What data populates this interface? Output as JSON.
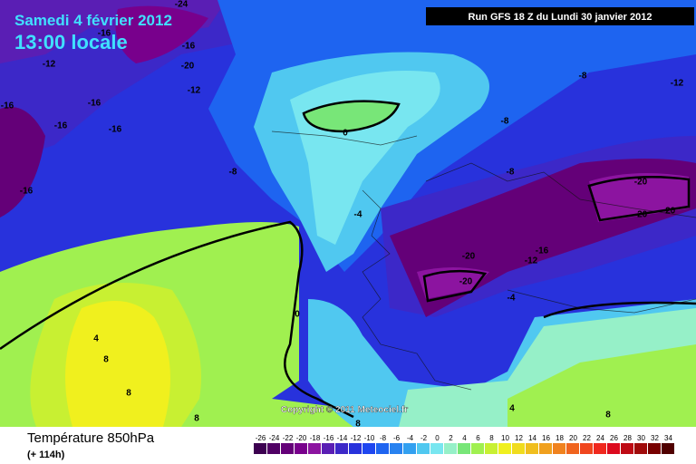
{
  "header": {
    "date": "Samedi 4 février 2012",
    "time": "13:00 locale",
    "run": "Run GFS 18 Z du Lundi 30 janvier 2012"
  },
  "copyright": "Copyright © 2011 Meteociel.fr",
  "footer": {
    "title": "Température 850hPa",
    "lead": "(+ 114h)"
  },
  "contour_labels": [
    -24,
    -16,
    -16,
    -20,
    -12,
    -12,
    -16,
    -16,
    -16,
    -16,
    -8,
    -16,
    0,
    -8,
    -12,
    -8,
    -8,
    -4,
    -20,
    -20,
    -20,
    -16,
    -20,
    -12,
    -20,
    -4,
    0,
    4,
    8,
    8,
    8,
    8,
    4,
    8
  ],
  "legend": {
    "values": [
      -26,
      -24,
      -22,
      -20,
      -18,
      -16,
      -14,
      -12,
      -10,
      -8,
      -6,
      -4,
      -2,
      0,
      2,
      4,
      6,
      8,
      10,
      12,
      14,
      16,
      18,
      20,
      22,
      24,
      26,
      28,
      30,
      32,
      34
    ],
    "colors": [
      "#3c0050",
      "#500064",
      "#640078",
      "#78008c",
      "#8c14a0",
      "#5a1eb4",
      "#3c28c8",
      "#2832dc",
      "#1e46f0",
      "#1e64f0",
      "#2882f0",
      "#32a0f0",
      "#50c8f0",
      "#78e6f0",
      "#96f0c8",
      "#78e678",
      "#a0f050",
      "#c8f032",
      "#f0f01e",
      "#f0dc1e",
      "#f0be1e",
      "#f0a01e",
      "#f0821e",
      "#f0641e",
      "#f0461e",
      "#f0281e",
      "#dc0a1e",
      "#be0a14",
      "#a00a0a",
      "#780000",
      "#500000"
    ]
  }
}
